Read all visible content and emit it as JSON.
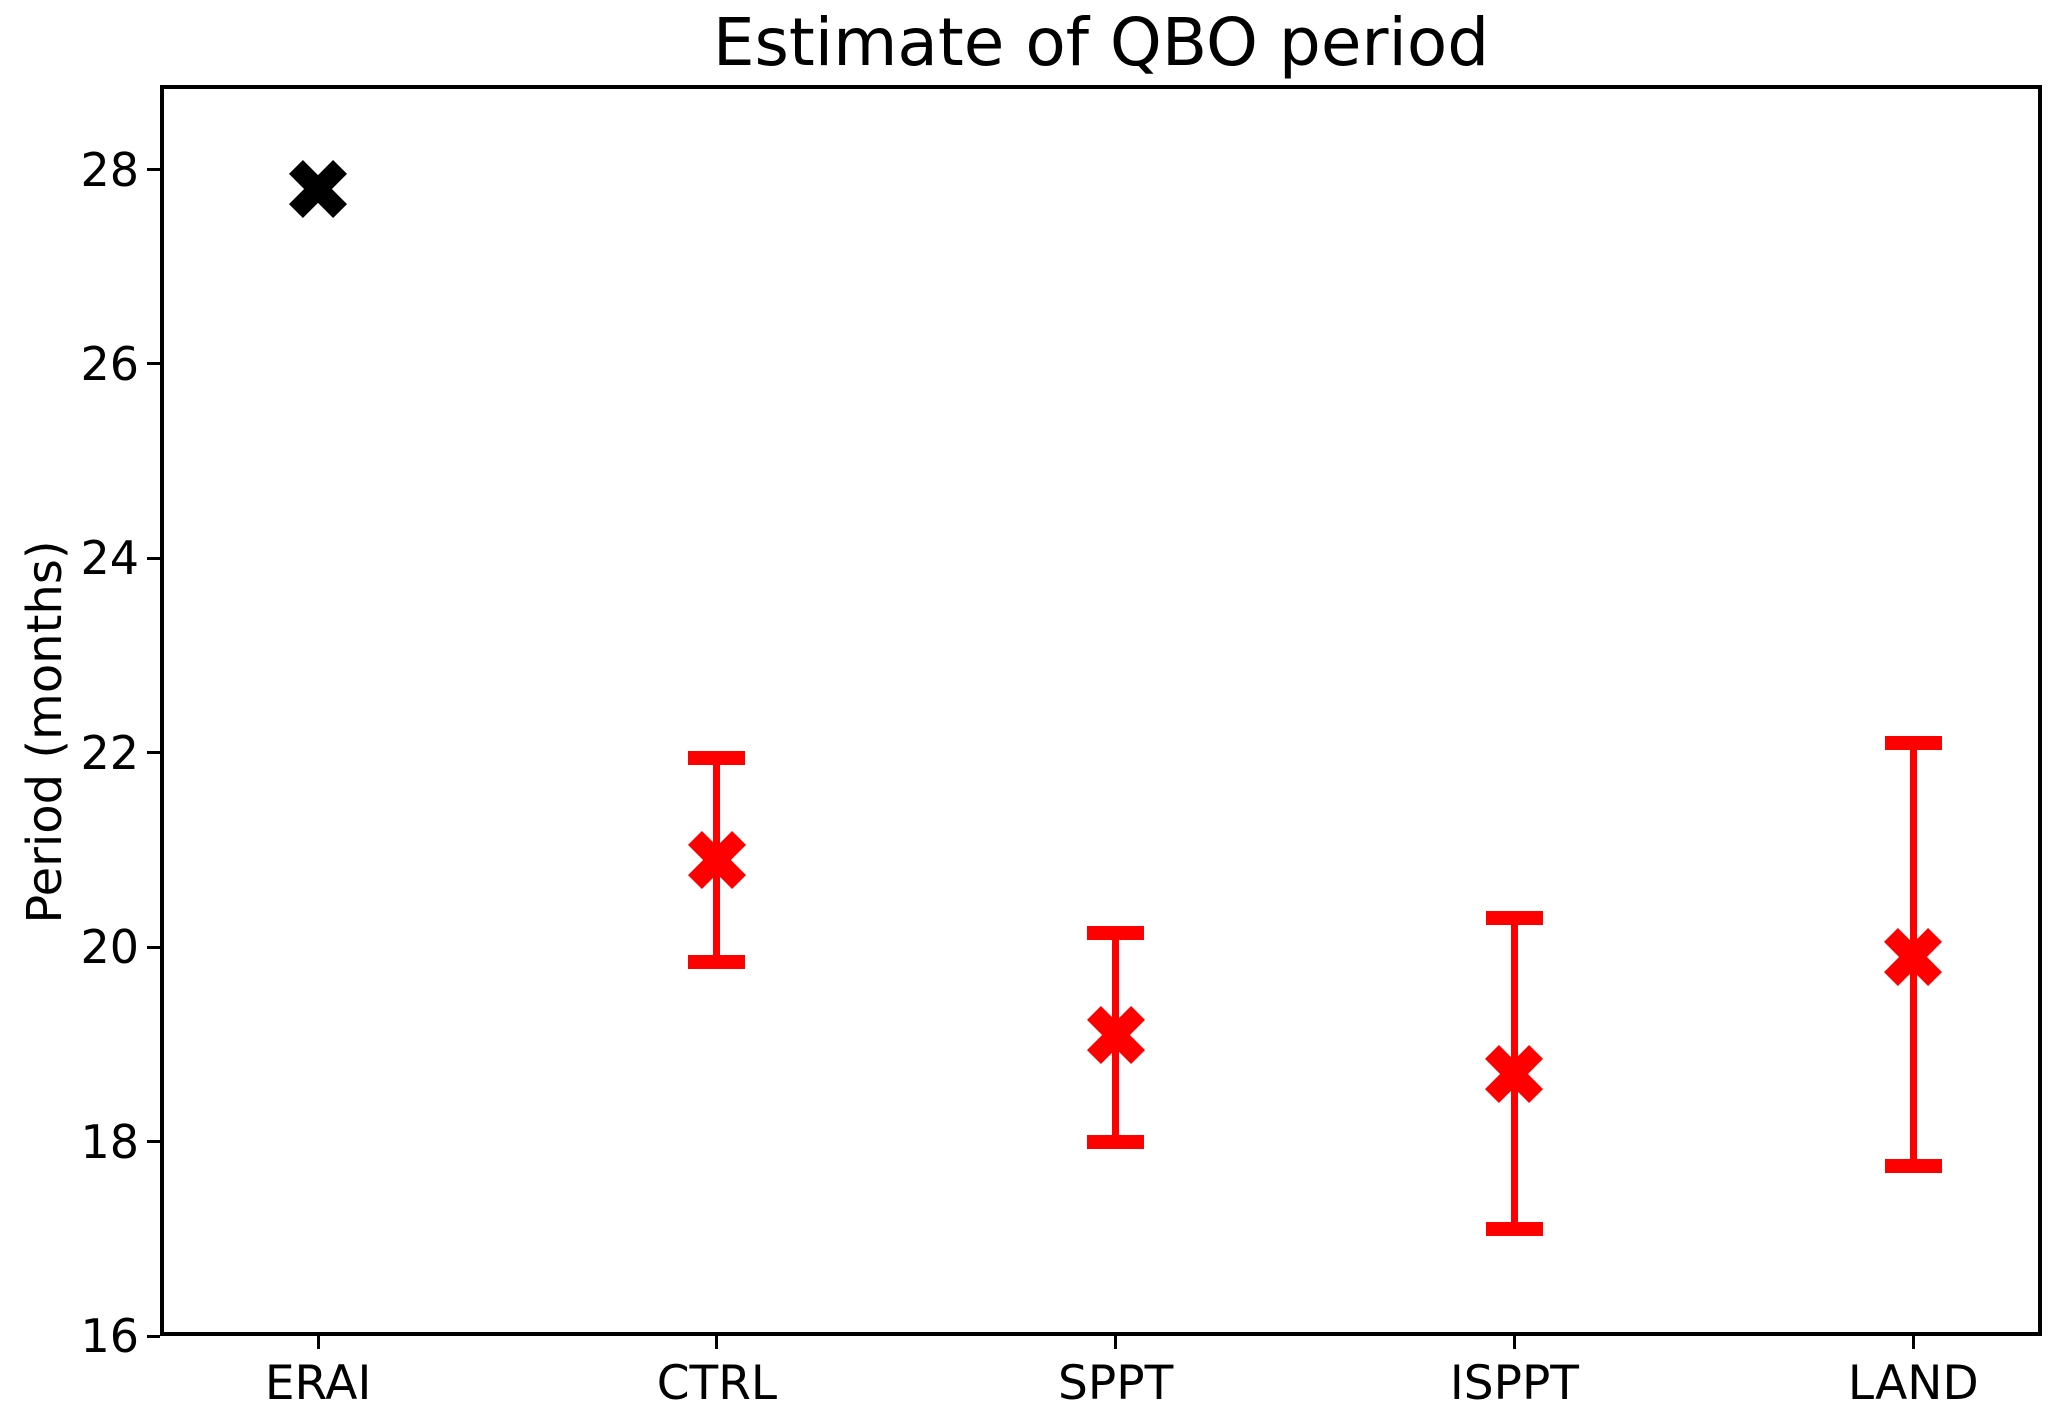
{
  "chart_data": {
    "type": "scatter",
    "title": "Estimate of QBO period",
    "ylabel": "Period (months)",
    "xlabel": "",
    "categories": [
      "ERAI",
      "CTRL",
      "SPPT",
      "ISPPT",
      "LAND"
    ],
    "y_axis": {
      "min": 16,
      "max": 28.87,
      "ticks": [
        16,
        18,
        20,
        22,
        24,
        26,
        28
      ]
    },
    "grid": false,
    "legend": false,
    "marker_style": "X",
    "colors": {
      "observation": "#000000",
      "model": "#ff0000"
    },
    "series": [
      {
        "label": "ERAI",
        "value": 27.8,
        "error_low": null,
        "error_high": null,
        "color": "#000000"
      },
      {
        "label": "CTRL",
        "value": 20.9,
        "error_low": 19.85,
        "error_high": 21.95,
        "color": "#ff0000"
      },
      {
        "label": "SPPT",
        "value": 19.1,
        "error_low": 18.0,
        "error_high": 20.15,
        "color": "#ff0000"
      },
      {
        "label": "ISPPT",
        "value": 18.7,
        "error_low": 17.1,
        "error_high": 20.3,
        "color": "#ff0000"
      },
      {
        "label": "LAND",
        "value": 19.9,
        "error_low": 17.75,
        "error_high": 22.1,
        "color": "#ff0000"
      }
    ]
  }
}
